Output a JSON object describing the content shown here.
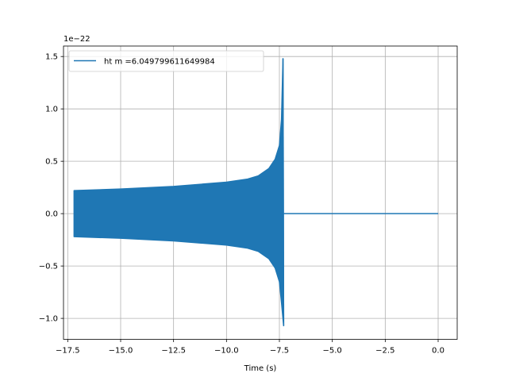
{
  "chart_data": {
    "type": "line",
    "xlabel": "Time (s)",
    "ylabel": "",
    "y_offset_text": "1e−22",
    "xlim": [
      -17.7,
      0.9
    ],
    "ylim": [
      -1.2,
      1.6
    ],
    "x_ticks": [
      -17.5,
      -15.0,
      -12.5,
      -10.0,
      -7.5,
      -5.0,
      -2.5,
      0.0
    ],
    "x_tick_labels": [
      "−17.5",
      "−15.0",
      "−12.5",
      "−10.0",
      "−7.5",
      "−5.0",
      "−2.5",
      "0.0"
    ],
    "y_ticks": [
      -1.0,
      -0.5,
      0.0,
      0.5,
      1.0,
      1.5
    ],
    "y_tick_labels": [
      "−1.0",
      "−0.5",
      "0.0",
      "0.5",
      "1.0",
      "1.5"
    ],
    "grid": true,
    "legend_position": "top-left",
    "series": [
      {
        "name": "ht m =6.049799611649984",
        "color": "#1f77b4",
        "start_time": -17.2,
        "merger_time": -7.3,
        "end_time": 0.0,
        "envelope_upper": [
          [
            -17.2,
            0.22
          ],
          [
            -15.0,
            0.235
          ],
          [
            -12.5,
            0.26
          ],
          [
            -10.0,
            0.3
          ],
          [
            -9.0,
            0.33
          ],
          [
            -8.5,
            0.36
          ],
          [
            -8.0,
            0.43
          ],
          [
            -7.7,
            0.52
          ],
          [
            -7.5,
            0.65
          ],
          [
            -7.4,
            0.9
          ],
          [
            -7.33,
            1.48
          ]
        ],
        "envelope_lower": [
          [
            -17.2,
            -0.22
          ],
          [
            -15.0,
            -0.235
          ],
          [
            -12.5,
            -0.26
          ],
          [
            -10.0,
            -0.3
          ],
          [
            -9.0,
            -0.33
          ],
          [
            -8.5,
            -0.36
          ],
          [
            -8.0,
            -0.43
          ],
          [
            -7.7,
            -0.52
          ],
          [
            -7.5,
            -0.65
          ],
          [
            -7.4,
            -0.85
          ],
          [
            -7.3,
            -1.07
          ]
        ],
        "post_merger_value": 0.0
      }
    ]
  }
}
